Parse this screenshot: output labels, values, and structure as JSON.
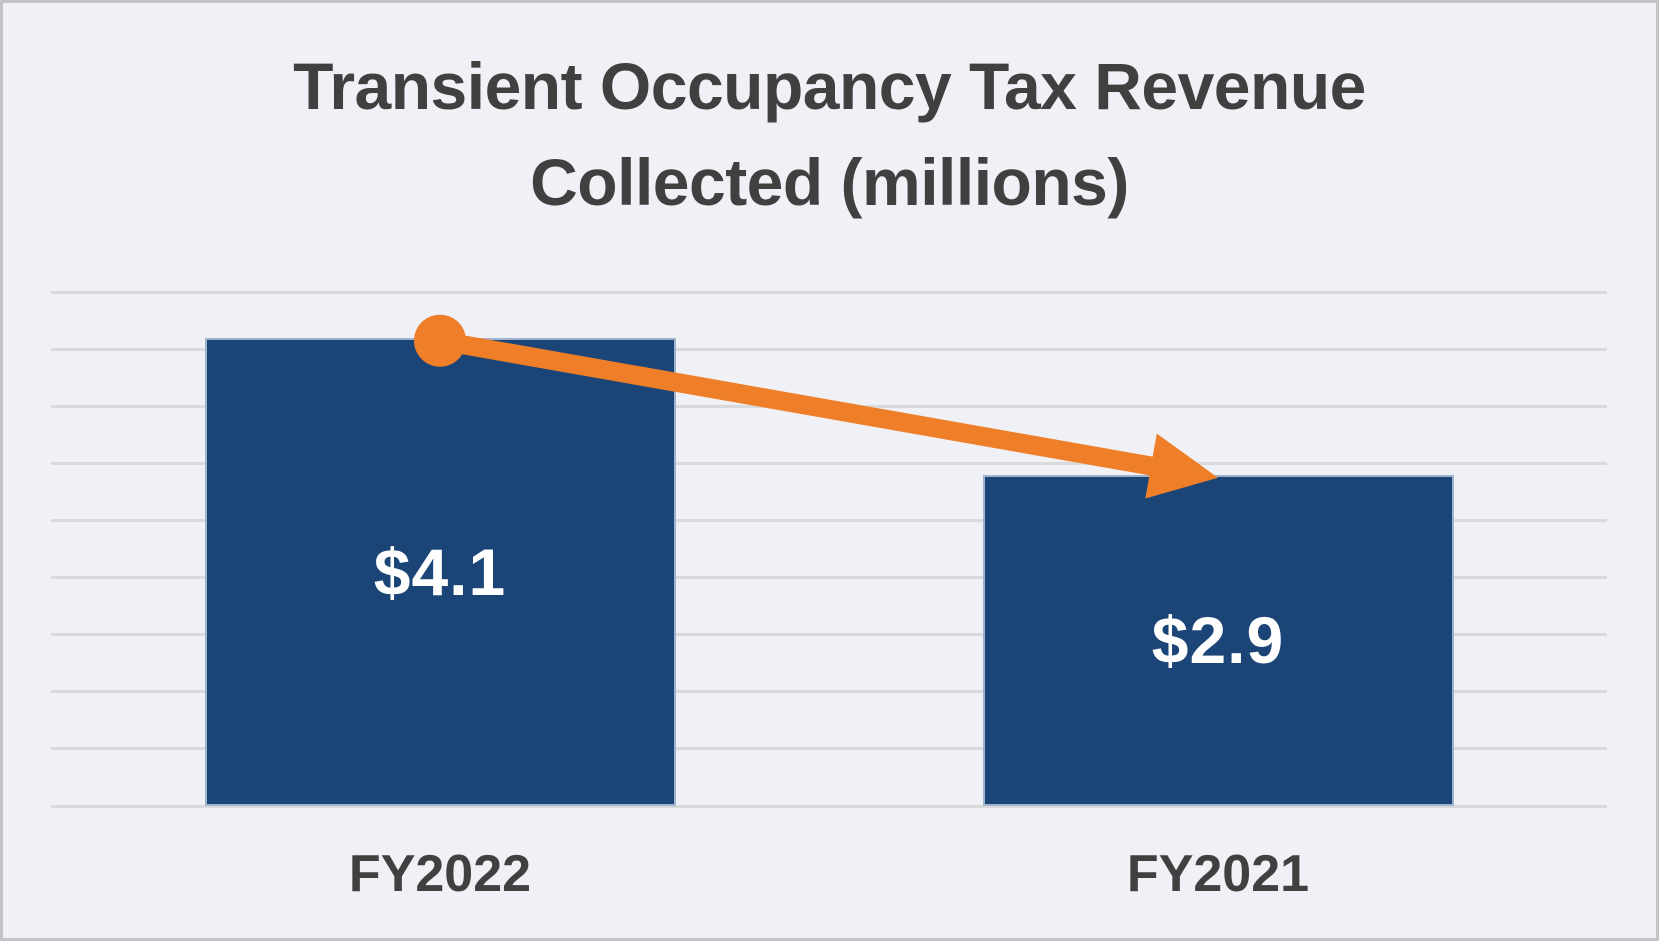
{
  "frame": {
    "background": "#EFF1F6",
    "border_color": "#C2C3C7"
  },
  "chart_data": {
    "type": "bar",
    "title": "Transient Occupancy Tax Revenue Collected (millions)",
    "title_lines": [
      "Transient Occupancy Tax Revenue",
      "Collected (millions)"
    ],
    "categories": [
      "FY2022",
      "FY2021"
    ],
    "values": [
      4.1,
      2.9
    ],
    "value_labels": [
      "$4.1",
      "$2.9"
    ],
    "xlabel": "",
    "ylabel": "",
    "ylim": [
      0,
      4.5
    ],
    "gridline_step": 0.5,
    "grid": true,
    "legend": "none",
    "bar_color": "#1B4577",
    "value_label_color": "#FFFFFF",
    "axis_label_color": "#404040",
    "title_color": "#404040",
    "gridline_color": "#D9DADC",
    "annotation": {
      "type": "trend-arrow",
      "description": "orange arrow with round start dot from top center of FY2022 bar to top center of FY2021 bar",
      "color": "#EF7E28"
    }
  }
}
